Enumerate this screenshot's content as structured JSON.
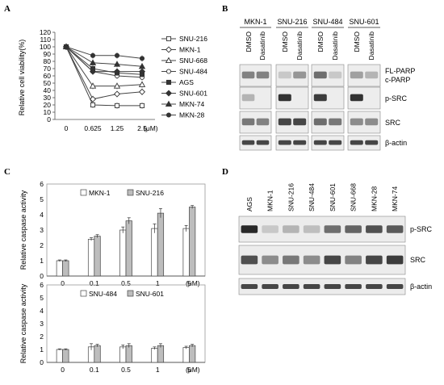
{
  "panels": {
    "A": {
      "letter": "A",
      "chart_data": {
        "type": "line",
        "xlabel": "",
        "x_unit": "(μM)",
        "ylabel": "Relative cell viability(%)",
        "categories": [
          "0",
          "0.625",
          "1.25",
          "2.5"
        ],
        "ylim": [
          0,
          120
        ],
        "yticks": [
          0,
          10,
          20,
          30,
          40,
          50,
          60,
          70,
          80,
          90,
          100,
          110,
          120
        ],
        "legend_position": "right",
        "series": [
          {
            "name": "SNU-216",
            "marker": "square-open",
            "values": [
              100,
              20,
              19,
              19
            ]
          },
          {
            "name": "MKN-1",
            "marker": "diamond-open",
            "values": [
              100,
              28,
              35,
              38
            ]
          },
          {
            "name": "SNU-668",
            "marker": "triangle-open",
            "values": [
              100,
              46,
              46,
              48
            ]
          },
          {
            "name": "SNU-484",
            "marker": "circle-open",
            "values": [
              100,
              66,
              60,
              58
            ]
          },
          {
            "name": "AGS",
            "marker": "square-filled",
            "values": [
              100,
              70,
              64,
              62
            ]
          },
          {
            "name": "SNU-601",
            "marker": "diamond-filled",
            "values": [
              100,
              66,
              66,
              66
            ]
          },
          {
            "name": "MKN-74",
            "marker": "triangle-filled",
            "values": [
              100,
              78,
              76,
              73
            ]
          },
          {
            "name": "MKN-28",
            "marker": "circle-filled",
            "values": [
              100,
              88,
              88,
              84
            ]
          }
        ]
      }
    },
    "B": {
      "letter": "B",
      "cell_lines": [
        "MKN-1",
        "SNU-216",
        "SNU-484",
        "SNU-601"
      ],
      "treatments": [
        "DMSO",
        "Dasatinib"
      ],
      "row_labels": [
        "FL-PARP",
        "c-PARP",
        "p-SRC",
        "SRC",
        "β-actin"
      ]
    },
    "C": {
      "letter": "C",
      "chart_data": [
        {
          "type": "bar",
          "ylabel": "Relative caspase activity",
          "categories": [
            "0",
            "0.1",
            "0.5",
            "1",
            "5"
          ],
          "x_unit": "(μM)",
          "ylim": [
            0,
            6
          ],
          "yticks": [
            0,
            1,
            2,
            3,
            4,
            5,
            6
          ],
          "legend_position": "top",
          "series": [
            {
              "name": "MKN-1",
              "fill": "#ffffff",
              "values": [
                1.0,
                2.4,
                3.0,
                3.1,
                3.1
              ],
              "errors": [
                0.05,
                0.1,
                0.2,
                0.3,
                0.2
              ]
            },
            {
              "name": "SNU-216",
              "fill": "#bdbdbd",
              "values": [
                1.0,
                2.6,
                3.6,
                4.1,
                4.5
              ],
              "errors": [
                0.05,
                0.1,
                0.2,
                0.3,
                0.1
              ]
            }
          ]
        },
        {
          "type": "bar",
          "ylabel": "Relative caspase activity",
          "categories": [
            "0",
            "0.1",
            "0.5",
            "1",
            "5"
          ],
          "x_unit": "(μM)",
          "ylim": [
            0,
            6
          ],
          "yticks": [
            0,
            1,
            2,
            3,
            4,
            5,
            6
          ],
          "legend_position": "top",
          "series": [
            {
              "name": "SNU-484",
              "fill": "#ffffff",
              "values": [
                1.0,
                1.2,
                1.2,
                1.1,
                1.15
              ],
              "errors": [
                0.05,
                0.25,
                0.15,
                0.1,
                0.1
              ]
            },
            {
              "name": "SNU-601",
              "fill": "#bdbdbd",
              "values": [
                1.0,
                1.3,
                1.3,
                1.3,
                1.3
              ],
              "errors": [
                0.05,
                0.1,
                0.15,
                0.15,
                0.1
              ]
            }
          ]
        }
      ]
    },
    "D": {
      "letter": "D",
      "lanes": [
        "AGS",
        "MKN-1",
        "SNU-216",
        "SNU-484",
        "SNU-601",
        "SNU-668",
        "MKN-28",
        "MKN-74"
      ],
      "row_labels": [
        "p-SRC",
        "SRC",
        "β-actin"
      ]
    }
  }
}
